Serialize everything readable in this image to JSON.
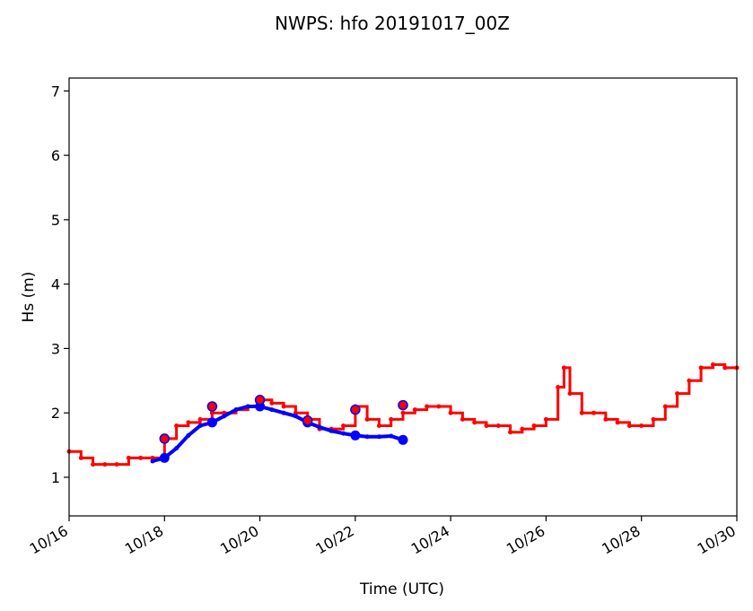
{
  "chart_data": {
    "type": "line",
    "title": "NWPS: hfo 20191017_00Z",
    "xlabel": "Time (UTC)",
    "ylabel": "Hs (m)",
    "xlim": [
      "10/16",
      "10/30"
    ],
    "ylim": [
      0.4,
      7.2
    ],
    "x_tick_labels": [
      "10/16",
      "10/18",
      "10/20",
      "10/22",
      "10/24",
      "10/26",
      "10/28",
      "10/30"
    ],
    "y_tick_labels": [
      "1",
      "2",
      "3",
      "4",
      "5",
      "6",
      "7"
    ],
    "grid": false,
    "series": [
      {
        "color": "#ff0000",
        "marker": "small dot, step line",
        "x": [
          "10/16 00:00",
          "10/16 06:00",
          "10/16 12:00",
          "10/16 18:00",
          "10/17 00:00",
          "10/17 06:00",
          "10/17 12:00",
          "10/17 18:00",
          "10/18 00:00",
          "10/18 06:00",
          "10/18 12:00",
          "10/18 18:00",
          "10/19 00:00",
          "10/19 06:00",
          "10/19 12:00",
          "10/19 18:00",
          "10/20 00:00",
          "10/20 06:00",
          "10/20 12:00",
          "10/20 18:00",
          "10/21 00:00",
          "10/21 06:00",
          "10/21 12:00",
          "10/21 18:00",
          "10/22 00:00",
          "10/22 06:00",
          "10/22 12:00",
          "10/22 18:00",
          "10/23 00:00",
          "10/23 06:00",
          "10/23 12:00",
          "10/23 18:00",
          "10/24 00:00",
          "10/24 06:00",
          "10/24 12:00",
          "10/24 18:00",
          "10/25 00:00",
          "10/25 06:00",
          "10/25 12:00",
          "10/25 18:00",
          "10/26 00:00",
          "10/26 06:00",
          "10/26 09:00",
          "10/26 12:00",
          "10/26 18:00",
          "10/27 00:00",
          "10/27 06:00",
          "10/27 12:00",
          "10/27 18:00",
          "10/28 00:00",
          "10/28 06:00",
          "10/28 12:00",
          "10/28 18:00",
          "10/29 00:00",
          "10/29 06:00",
          "10/29 12:00",
          "10/29 18:00",
          "10/30 00:00"
        ],
        "values": [
          1.4,
          1.3,
          1.2,
          1.2,
          1.2,
          1.3,
          1.3,
          1.3,
          1.6,
          1.8,
          1.85,
          1.9,
          2.0,
          2.0,
          2.05,
          2.1,
          2.2,
          2.15,
          2.1,
          2.0,
          1.9,
          1.75,
          1.75,
          1.8,
          2.1,
          1.9,
          1.8,
          1.9,
          2.0,
          2.05,
          2.1,
          2.1,
          2.0,
          1.9,
          1.85,
          1.8,
          1.8,
          1.7,
          1.75,
          1.8,
          1.9,
          2.4,
          2.7,
          2.3,
          2.0,
          2.0,
          1.9,
          1.85,
          1.8,
          1.8,
          1.9,
          2.1,
          2.3,
          2.5,
          2.7,
          2.75,
          2.7,
          2.7
        ]
      },
      {
        "color": "#0000ff",
        "marker": "large dot, solid line",
        "x": [
          "10/17 18:00",
          "10/18 00:00",
          "10/18 06:00",
          "10/18 12:00",
          "10/18 18:00",
          "10/19 00:00",
          "10/19 06:00",
          "10/19 12:00",
          "10/19 18:00",
          "10/20 00:00",
          "10/20 06:00",
          "10/20 12:00",
          "10/20 18:00",
          "10/21 00:00",
          "10/21 06:00",
          "10/21 12:00",
          "10/21 18:00",
          "10/22 00:00",
          "10/22 06:00",
          "10/22 12:00",
          "10/22 18:00",
          "10/23 00:00"
        ],
        "values": [
          1.25,
          1.3,
          1.45,
          1.65,
          1.8,
          1.85,
          1.95,
          2.05,
          2.1,
          2.1,
          2.05,
          2.0,
          1.95,
          1.85,
          1.78,
          1.72,
          1.68,
          1.65,
          1.63,
          1.63,
          1.64,
          1.58
        ]
      },
      {
        "color": "#ff0000",
        "marker": "open circle, blue edge",
        "x": [
          "10/18 00:00",
          "10/19 00:00",
          "10/20 00:00",
          "10/21 00:00",
          "10/22 00:00",
          "10/23 00:00"
        ],
        "values": [
          1.6,
          2.1,
          2.2,
          1.88,
          2.05,
          2.12
        ]
      }
    ]
  }
}
